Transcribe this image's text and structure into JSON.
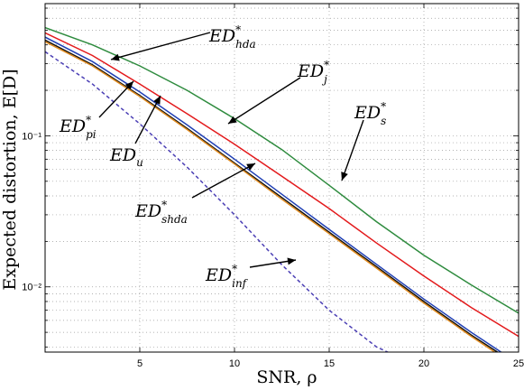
{
  "chart_data": {
    "type": "line",
    "title": "",
    "xlabel": "SNR, ρ",
    "ylabel": "Expected distortion, E[D]",
    "xlim": [
      0,
      25
    ],
    "ylim": [
      0.0037,
      0.75
    ],
    "yscale": "log",
    "grid": true,
    "x_ticks": [
      5,
      10,
      15,
      20,
      25
    ],
    "x_tick_labels": [
      "5",
      "10",
      "15",
      "20",
      "25"
    ],
    "y_ticks": [
      0.01,
      0.1
    ],
    "y_tick_labels": [
      "10⁻²",
      "10⁻¹"
    ],
    "series": [
      {
        "name": "ED*_s",
        "color": "#2e8b3e",
        "dash": "",
        "x": [
          0,
          2.5,
          5,
          7.5,
          10,
          12.5,
          15,
          17.5,
          20,
          22.5,
          25
        ],
        "y": [
          0.52,
          0.4,
          0.29,
          0.2,
          0.13,
          0.081,
          0.047,
          0.027,
          0.0162,
          0.0103,
          0.0067
        ]
      },
      {
        "name": "ED*_hda",
        "color": "#2e8b3e",
        "dash": "",
        "marker_only": true,
        "x": [],
        "y": []
      },
      {
        "name": "ED*_j",
        "color": "#e31a1c",
        "dash": "",
        "x": [
          0,
          2.5,
          5,
          7.5,
          10,
          12.5,
          15,
          17.5,
          20,
          22.5,
          25
        ],
        "y": [
          0.48,
          0.34,
          0.22,
          0.14,
          0.088,
          0.054,
          0.033,
          0.0195,
          0.0118,
          0.0073,
          0.0047
        ]
      },
      {
        "name": "ED_u",
        "color": "#1f3fb4",
        "dash": "",
        "x": [
          0,
          2.5,
          5,
          7.5,
          10,
          12.5,
          15,
          17.5,
          20,
          22.5,
          25
        ],
        "y": [
          0.45,
          0.31,
          0.195,
          0.118,
          0.07,
          0.041,
          0.024,
          0.0141,
          0.0083,
          0.005,
          0.0031
        ]
      },
      {
        "name": "ED*_pi",
        "color": "#111111",
        "dash": "",
        "x": [
          0,
          2.5,
          5,
          7.5,
          10,
          12.5,
          15,
          17.5,
          20,
          22.5,
          25
        ],
        "y": [
          0.43,
          0.295,
          0.185,
          0.112,
          0.066,
          0.039,
          0.023,
          0.0136,
          0.008,
          0.0048,
          0.003
        ]
      },
      {
        "name": "ED*_shda",
        "color": "#e08a1e",
        "dash": "",
        "x": [
          0,
          2.5,
          5,
          7.5,
          10,
          12.5,
          15,
          17.5,
          20,
          22.5,
          25
        ],
        "y": [
          0.42,
          0.29,
          0.182,
          0.11,
          0.065,
          0.038,
          0.0225,
          0.0133,
          0.0078,
          0.0047,
          0.0029
        ]
      },
      {
        "name": "ED*_inf",
        "color": "#4b3fb5",
        "dash": "4,3",
        "x": [
          0,
          2.5,
          5,
          7.5,
          10,
          12.5,
          15,
          17.5,
          18.5
        ],
        "y": [
          0.36,
          0.22,
          0.12,
          0.062,
          0.03,
          0.014,
          0.007,
          0.004,
          0.0035
        ]
      }
    ],
    "annotations": [
      {
        "base": "ED",
        "sup": "*",
        "sub": "hda"
      },
      {
        "base": "ED",
        "sup": "*",
        "sub": "j"
      },
      {
        "base": "ED",
        "sup": "*",
        "sub": "s"
      },
      {
        "base": "ED",
        "sup": "*",
        "sub": "pi"
      },
      {
        "base": "ED",
        "sup": "",
        "sub": "u"
      },
      {
        "base": "ED",
        "sup": "*",
        "sub": "shda"
      },
      {
        "base": "ED",
        "sup": "*",
        "sub": "inf"
      }
    ]
  }
}
